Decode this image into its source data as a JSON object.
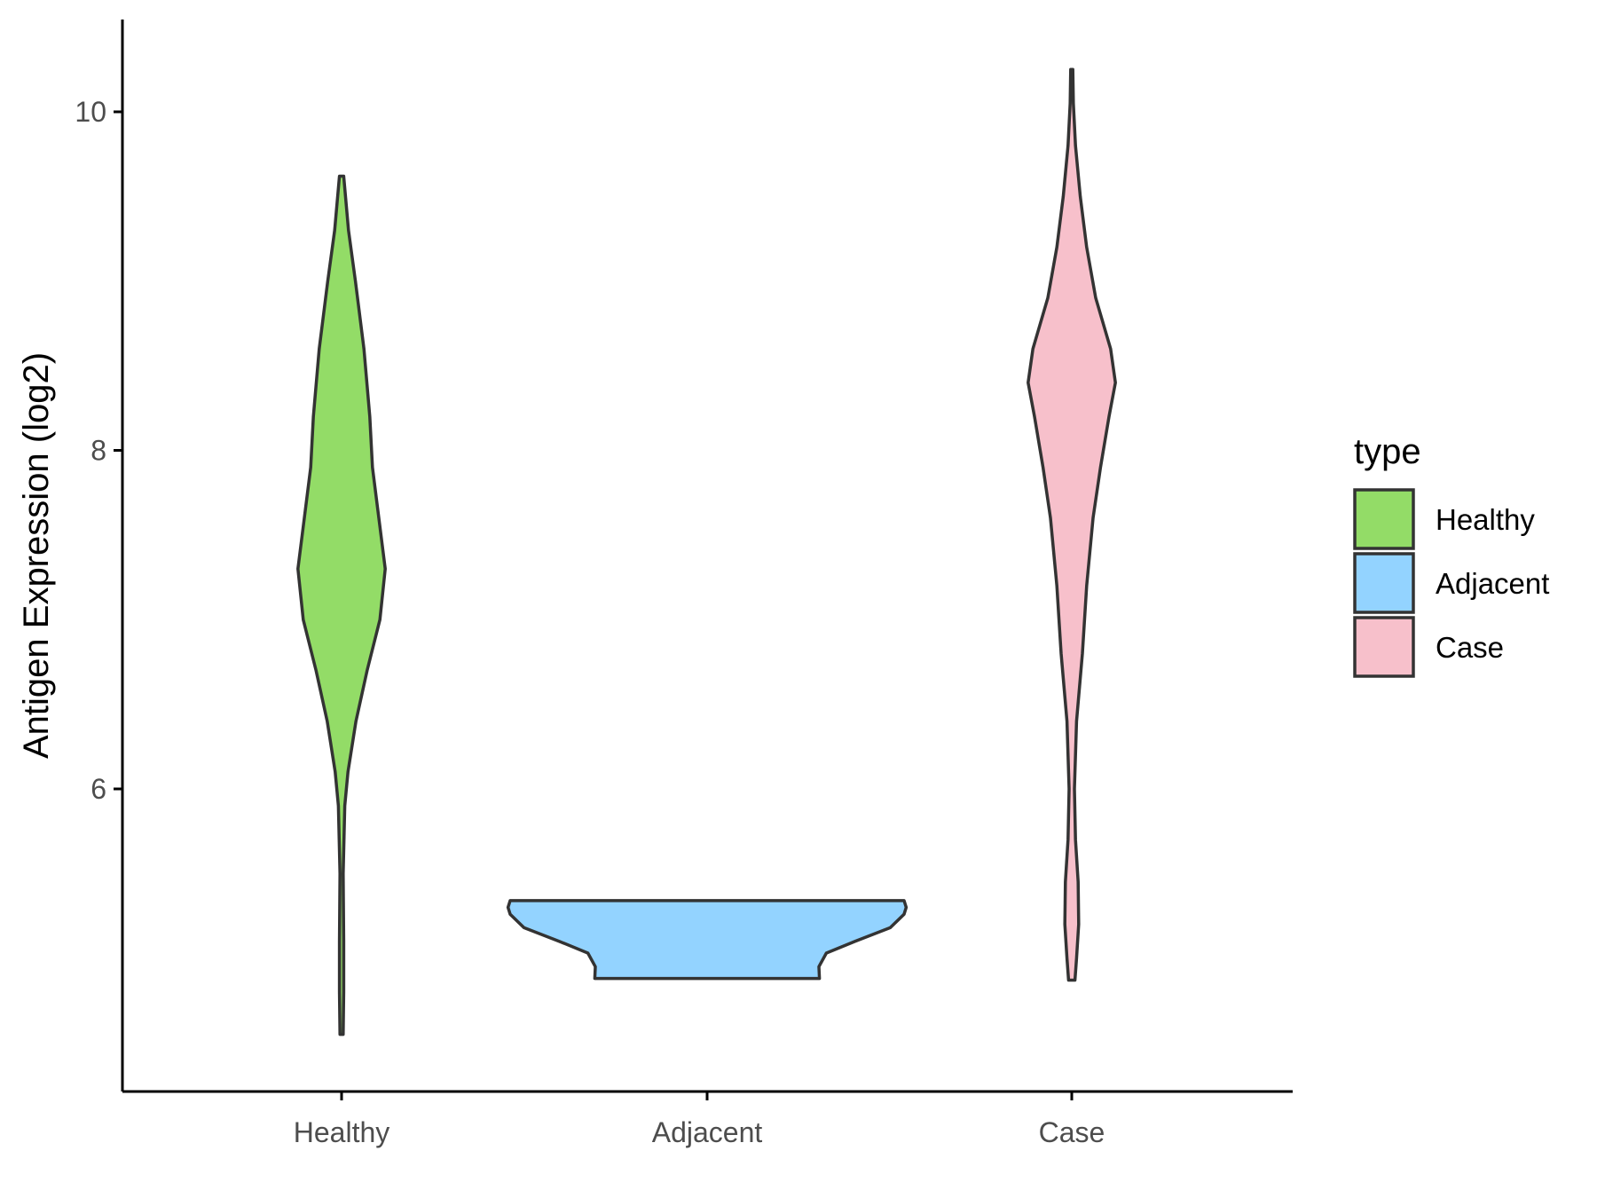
{
  "chart_data": {
    "type": "violin",
    "ylabel": "Antigen Expression (log2)",
    "xlabel": "",
    "categories": [
      "Healthy",
      "Adjacent",
      "Case"
    ],
    "y_ticks": [
      6,
      8,
      10
    ],
    "y_tick_labels": [
      "6",
      "8",
      "10"
    ],
    "ylim": [
      4.2,
      10.6
    ],
    "grid": false,
    "legend": {
      "title": "type",
      "placement": "right",
      "entries": [
        "Healthy",
        "Adjacent",
        "Case"
      ]
    },
    "series": [
      {
        "category": "Healthy",
        "color": "#93dc67",
        "min": 4.55,
        "max": 9.62,
        "density": [
          [
            4.55,
            0.03
          ],
          [
            4.8,
            0.04
          ],
          [
            5.1,
            0.04
          ],
          [
            5.5,
            0.03
          ],
          [
            5.9,
            0.06
          ],
          [
            6.1,
            0.12
          ],
          [
            6.4,
            0.27
          ],
          [
            6.7,
            0.48
          ],
          [
            7.0,
            0.72
          ],
          [
            7.3,
            0.82
          ],
          [
            7.6,
            0.7
          ],
          [
            7.9,
            0.58
          ],
          [
            8.2,
            0.53
          ],
          [
            8.6,
            0.42
          ],
          [
            9.0,
            0.26
          ],
          [
            9.3,
            0.13
          ],
          [
            9.62,
            0.04
          ]
        ]
      },
      {
        "category": "Adjacent",
        "color": "#93d3ff",
        "min": 4.88,
        "max": 5.34,
        "density": [
          [
            4.88,
            2.11
          ],
          [
            4.95,
            2.1
          ],
          [
            5.03,
            2.24
          ],
          [
            5.1,
            2.78
          ],
          [
            5.18,
            3.44
          ],
          [
            5.26,
            3.7
          ],
          [
            5.3,
            3.74
          ],
          [
            5.34,
            3.7
          ]
        ]
      },
      {
        "category": "Case",
        "color": "#f7c0cb",
        "min": 4.87,
        "max": 10.25,
        "density": [
          [
            4.87,
            0.06
          ],
          [
            5.0,
            0.09
          ],
          [
            5.2,
            0.13
          ],
          [
            5.45,
            0.12
          ],
          [
            5.7,
            0.07
          ],
          [
            6.0,
            0.05
          ],
          [
            6.4,
            0.09
          ],
          [
            6.8,
            0.2
          ],
          [
            7.2,
            0.28
          ],
          [
            7.6,
            0.4
          ],
          [
            7.9,
            0.54
          ],
          [
            8.2,
            0.7
          ],
          [
            8.4,
            0.82
          ],
          [
            8.6,
            0.73
          ],
          [
            8.9,
            0.45
          ],
          [
            9.2,
            0.28
          ],
          [
            9.5,
            0.16
          ],
          [
            9.8,
            0.07
          ],
          [
            10.05,
            0.03
          ],
          [
            10.25,
            0.02
          ]
        ]
      }
    ]
  },
  "colors": {
    "axis": "#000000",
    "outline": "#333333",
    "tick_text": "#4d4d4d"
  }
}
